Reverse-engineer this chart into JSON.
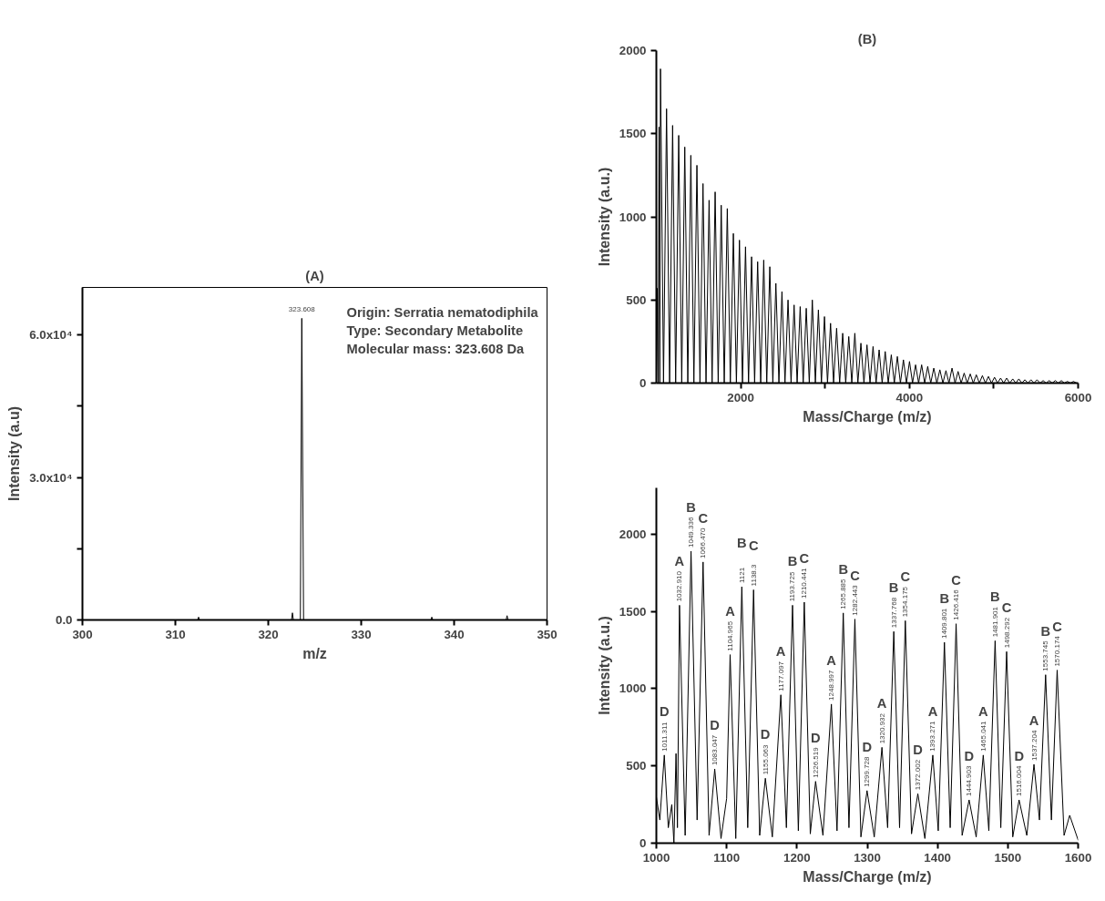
{
  "chart_data": [
    {
      "type": "line",
      "title": "(A)",
      "xlabel": "m/z",
      "ylabel": "Intensity (a.u)",
      "x": [
        300,
        312.4,
        312.5,
        312.6,
        322.5,
        322.6,
        322.7,
        323.45,
        323.608,
        323.8,
        337.5,
        337.6,
        337.7,
        345.6,
        345.7,
        345.8,
        350
      ],
      "series": [
        {
          "color": "#000000",
          "values": [
            0,
            0,
            600,
            0,
            0,
            1500,
            0,
            0,
            63500,
            0,
            0,
            600,
            0,
            0,
            900,
            0,
            0
          ]
        }
      ],
      "xlim": [
        300,
        350
      ],
      "ylim": [
        0,
        70000
      ],
      "xticks": [
        300,
        310,
        320,
        330,
        340,
        350
      ],
      "yticks": [
        {
          "value": 0,
          "label": "0.0"
        },
        {
          "value": 15000,
          "label": null
        },
        {
          "value": 30000,
          "label": "3.0x10⁴"
        },
        {
          "value": 45000,
          "label": null
        },
        {
          "value": 60000,
          "label": "6.0x10⁴"
        }
      ],
      "annotations": [
        {
          "text": "323.608",
          "x": 323.608,
          "y": 63500
        },
        "Origin: Serratia nematodiphila",
        "Type: Secondary Metabolite",
        "Molecular mass: 323.608 Da"
      ]
    },
    {
      "type": "line",
      "title": "(B)",
      "xlabel": "Mass/Charge (m/z)",
      "ylabel": "Intensity (a.u.)",
      "x": [
        1000,
        1011,
        1022,
        1032,
        1041,
        1049,
        1085,
        1121,
        1157,
        1193,
        1229,
        1265,
        1301,
        1337,
        1373,
        1409,
        1445,
        1481,
        1517,
        1553,
        1589,
        1625,
        1661,
        1697,
        1733,
        1769,
        1805,
        1841,
        1877,
        1913,
        1949,
        1985,
        2021,
        2057,
        2093,
        2129,
        2165,
        2201,
        2237,
        2273,
        2309,
        2345,
        2381,
        2417,
        2453,
        2489,
        2525,
        2561,
        2597,
        2633,
        2669,
        2705,
        2741,
        2777,
        2813,
        2849,
        2885,
        2921,
        2957,
        2993,
        3029,
        3065,
        3101,
        3137,
        3173,
        3209,
        3245,
        3281,
        3317,
        3353,
        3389,
        3425,
        3461,
        3497,
        3533,
        3569,
        3605,
        3641,
        3677,
        3713,
        3749,
        3785,
        3821,
        3857,
        3893,
        3929,
        3965,
        4001,
        4037,
        4073,
        4109,
        4145,
        4181,
        4217,
        4253,
        4289,
        4325,
        4361,
        4397,
        4433,
        4469,
        4505,
        4541,
        4577,
        4613,
        4649,
        4685,
        4721,
        4757,
        4793,
        4829,
        4865,
        4901,
        4937,
        4973,
        5009,
        5045,
        5081,
        5117,
        5153,
        5189,
        5225,
        5261,
        5297,
        5333,
        5369,
        5405,
        5441,
        5477,
        5513,
        5549,
        5585,
        5621,
        5657,
        5693,
        5729,
        5765,
        5801,
        5837,
        5873,
        5909,
        5945,
        5981
      ],
      "series": [
        {
          "color": "#000000",
          "values": [
            0,
            570,
            0,
            1540,
            0,
            1890,
            0,
            1650,
            0,
            1550,
            0,
            1490,
            0,
            1420,
            0,
            1370,
            0,
            1310,
            0,
            1200,
            0,
            1100,
            0,
            1150,
            0,
            1070,
            0,
            1050,
            0,
            900,
            0,
            860,
            0,
            820,
            0,
            760,
            0,
            730,
            0,
            740,
            0,
            700,
            0,
            600,
            0,
            550,
            0,
            500,
            0,
            470,
            0,
            460,
            0,
            450,
            0,
            500,
            0,
            440,
            0,
            400,
            0,
            360,
            0,
            330,
            0,
            300,
            0,
            280,
            0,
            300,
            0,
            240,
            0,
            230,
            0,
            220,
            0,
            200,
            0,
            190,
            0,
            170,
            0,
            160,
            0,
            140,
            0,
            130,
            0,
            110,
            0,
            110,
            0,
            100,
            0,
            90,
            0,
            80,
            0,
            75,
            0,
            90,
            0,
            70,
            0,
            60,
            0,
            55,
            0,
            50,
            0,
            45,
            0,
            40,
            0,
            35,
            0,
            30,
            0,
            30,
            0,
            25,
            0,
            25,
            0,
            20,
            0,
            20,
            0,
            20,
            0,
            15,
            0,
            15,
            0,
            15,
            0,
            15,
            0,
            10,
            0,
            10,
            0
          ]
        }
      ],
      "xlim": [
        1000,
        6000
      ],
      "ylim": [
        0,
        2000
      ],
      "xticks": [
        2000,
        {
          "value": 3000,
          "label": null
        },
        4000,
        {
          "value": 5000,
          "label": null
        },
        6000
      ],
      "yticks": [
        0,
        500,
        1000,
        1500,
        2000
      ]
    },
    {
      "type": "line",
      "xlabel": "Mass/Charge (m/z)",
      "ylabel": "Intensity (a.u.)",
      "x": [
        1000,
        1005,
        1011.311,
        1017,
        1022,
        1025,
        1028,
        1030,
        1032.91,
        1041,
        1049.336,
        1058,
        1066.47,
        1075,
        1083.047,
        1092,
        1100,
        1104.965,
        1113,
        1121.6,
        1130,
        1138.3,
        1147,
        1155.063,
        1165,
        1177.097,
        1185,
        1193.725,
        1202,
        1210.441,
        1219,
        1226.519,
        1237,
        1248.997,
        1257,
        1265.885,
        1274,
        1282.443,
        1291,
        1299.728,
        1310,
        1320.932,
        1329,
        1337.768,
        1346,
        1354.175,
        1363,
        1372.002,
        1382,
        1393.271,
        1401,
        1409.801,
        1418,
        1426.416,
        1435,
        1444.903,
        1455,
        1465.041,
        1473,
        1481.901,
        1490,
        1498.292,
        1507,
        1516.004,
        1527,
        1537.204,
        1545,
        1553.745,
        1562,
        1570.174,
        1580,
        1588,
        1600
      ],
      "series": [
        {
          "color": "#000000",
          "values": [
            300,
            150,
            570,
            100,
            250,
            0,
            580,
            100,
            1540,
            50,
            1890,
            150,
            1820,
            50,
            480,
            30,
            290,
            1220,
            30,
            1660,
            100,
            1640,
            50,
            420,
            40,
            960,
            100,
            1540,
            80,
            1560,
            60,
            400,
            50,
            900,
            80,
            1490,
            100,
            1450,
            40,
            340,
            40,
            620,
            100,
            1370,
            100,
            1440,
            60,
            320,
            30,
            570,
            80,
            1300,
            100,
            1420,
            50,
            280,
            40,
            570,
            80,
            1310,
            100,
            1240,
            40,
            280,
            50,
            510,
            150,
            1090,
            150,
            1120,
            50,
            180,
            20
          ]
        }
      ],
      "xlim": [
        1000,
        1600
      ],
      "ylim": [
        0,
        2300
      ],
      "xticks": [
        1000,
        1100,
        1200,
        1300,
        1400,
        1500,
        1600
      ],
      "yticks": [
        0,
        500,
        1000,
        1500,
        2000
      ],
      "annotations": [
        {
          "text": "1011.311",
          "x": 1011.311,
          "y": 570
        },
        {
          "text": "D",
          "x": 1011.311,
          "y": 570
        },
        {
          "text": "1032.910",
          "x": 1032.91,
          "y": 1540
        },
        {
          "text": "A",
          "x": 1032.91,
          "y": 1540
        },
        {
          "text": "1049.336",
          "x": 1049.336,
          "y": 1890
        },
        {
          "text": "B",
          "x": 1049.336,
          "y": 1890
        },
        {
          "text": "1066.470",
          "x": 1066.47,
          "y": 1820
        },
        {
          "text": "C",
          "x": 1066.47,
          "y": 1820
        },
        {
          "text": "1083.047",
          "x": 1083.047,
          "y": 480
        },
        {
          "text": "D",
          "x": 1083.047,
          "y": 480
        },
        {
          "text": "1104.965",
          "x": 1104.965,
          "y": 1220
        },
        {
          "text": "A",
          "x": 1104.965,
          "y": 1220
        },
        {
          "text": "1121",
          "x": 1121.6,
          "y": 1660
        },
        {
          "text": "B",
          "x": 1121.6,
          "y": 1660
        },
        {
          "text": "1138.3",
          "x": 1138.3,
          "y": 1640
        },
        {
          "text": "C",
          "x": 1138.3,
          "y": 1640
        },
        {
          "text": "1155.063",
          "x": 1155.063,
          "y": 420
        },
        {
          "text": "D",
          "x": 1155.063,
          "y": 420
        },
        {
          "text": "1177.097",
          "x": 1177.097,
          "y": 960
        },
        {
          "text": "A",
          "x": 1177.097,
          "y": 960
        },
        {
          "text": "1193.725",
          "x": 1193.725,
          "y": 1540
        },
        {
          "text": "B",
          "x": 1193.725,
          "y": 1540
        },
        {
          "text": "1210.441",
          "x": 1210.441,
          "y": 1560
        },
        {
          "text": "C",
          "x": 1210.441,
          "y": 1560
        },
        {
          "text": "1226.519",
          "x": 1226.519,
          "y": 400
        },
        {
          "text": "D",
          "x": 1226.519,
          "y": 400
        },
        {
          "text": "1248.997",
          "x": 1248.997,
          "y": 900
        },
        {
          "text": "A",
          "x": 1248.997,
          "y": 900
        },
        {
          "text": "1265.885",
          "x": 1265.885,
          "y": 1490
        },
        {
          "text": "B",
          "x": 1265.885,
          "y": 1490
        },
        {
          "text": "1282.443",
          "x": 1282.443,
          "y": 1450
        },
        {
          "text": "C",
          "x": 1282.443,
          "y": 1450
        },
        {
          "text": "1299.728",
          "x": 1299.728,
          "y": 340
        },
        {
          "text": "D",
          "x": 1299.728,
          "y": 340
        },
        {
          "text": "1320.932",
          "x": 1320.932,
          "y": 620
        },
        {
          "text": "A",
          "x": 1320.932,
          "y": 620
        },
        {
          "text": "1337.768",
          "x": 1337.768,
          "y": 1370
        },
        {
          "text": "B",
          "x": 1337.768,
          "y": 1370
        },
        {
          "text": "1354.175",
          "x": 1354.175,
          "y": 1440
        },
        {
          "text": "C",
          "x": 1354.175,
          "y": 1440
        },
        {
          "text": "1372.002",
          "x": 1372.002,
          "y": 320
        },
        {
          "text": "D",
          "x": 1372.002,
          "y": 320
        },
        {
          "text": "1393.271",
          "x": 1393.271,
          "y": 570
        },
        {
          "text": "A",
          "x": 1393.271,
          "y": 570
        },
        {
          "text": "1409.801",
          "x": 1409.801,
          "y": 1300
        },
        {
          "text": "B",
          "x": 1409.801,
          "y": 1300
        },
        {
          "text": "1426.416",
          "x": 1426.416,
          "y": 1420
        },
        {
          "text": "C",
          "x": 1426.416,
          "y": 1420
        },
        {
          "text": "1444.903",
          "x": 1444.903,
          "y": 280
        },
        {
          "text": "D",
          "x": 1444.903,
          "y": 280
        },
        {
          "text": "1465.041",
          "x": 1465.041,
          "y": 570
        },
        {
          "text": "A",
          "x": 1465.041,
          "y": 570
        },
        {
          "text": "1481.901",
          "x": 1481.901,
          "y": 1310
        },
        {
          "text": "B",
          "x": 1481.901,
          "y": 1310
        },
        {
          "text": "1498.292",
          "x": 1498.292,
          "y": 1240
        },
        {
          "text": "C",
          "x": 1498.292,
          "y": 1240
        },
        {
          "text": "1516.004",
          "x": 1516.004,
          "y": 280
        },
        {
          "text": "D",
          "x": 1516.004,
          "y": 280
        },
        {
          "text": "1537.204",
          "x": 1537.204,
          "y": 510
        },
        {
          "text": "A",
          "x": 1537.204,
          "y": 510
        },
        {
          "text": "1553.745",
          "x": 1553.745,
          "y": 1090
        },
        {
          "text": "B",
          "x": 1553.745,
          "y": 1090
        },
        {
          "text": "1570.174",
          "x": 1570.174,
          "y": 1120
        },
        {
          "text": "C",
          "x": 1570.174,
          "y": 1120
        }
      ]
    }
  ]
}
